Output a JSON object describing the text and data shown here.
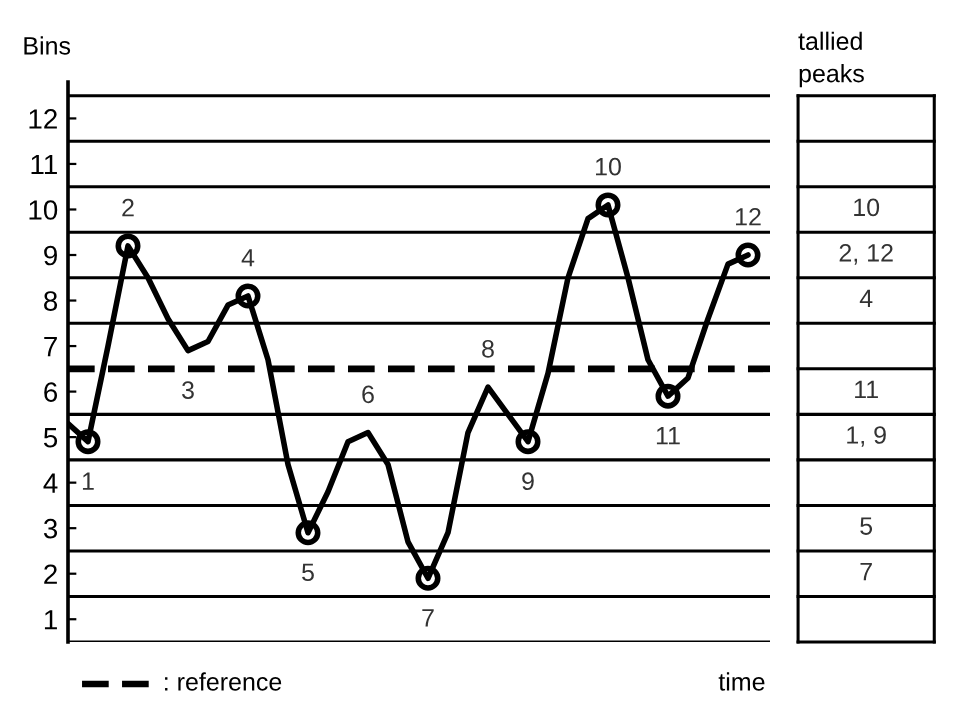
{
  "chart_data": {
    "type": "line",
    "ylabel": "Bins",
    "xlabel": "time",
    "categories": [
      null,
      null,
      null,
      null,
      null,
      null,
      null,
      null,
      null,
      null,
      null,
      null,
      null,
      null,
      null,
      null,
      null,
      null,
      null,
      null,
      null,
      null,
      null,
      null,
      null,
      null,
      null,
      null,
      null,
      null,
      null,
      null,
      null,
      null,
      null
    ],
    "ylim": [
      0.5,
      12.8
    ],
    "yticks": [
      1,
      2,
      3,
      4,
      5,
      6,
      7,
      8,
      9,
      10,
      11,
      12
    ],
    "series": [
      {
        "color": "#000000",
        "marker": "none",
        "values": [
          5.3,
          4.9,
          7.0,
          9.2,
          8.5,
          7.6,
          6.9,
          7.1,
          7.9,
          8.1,
          6.7,
          4.4,
          2.9,
          3.8,
          4.9,
          5.1,
          4.4,
          2.7,
          1.9,
          2.9,
          5.1,
          6.1,
          5.5,
          4.9,
          6.4,
          8.5,
          9.8,
          10.1,
          8.5,
          6.7,
          5.9,
          6.3,
          7.6,
          8.8,
          9.0
        ]
      },
      {
        "type": "scatter",
        "name": "1",
        "color": "#000000",
        "marker": "circle",
        "values": [
          null,
          4.9,
          null,
          null,
          null,
          null,
          null,
          null,
          null,
          null,
          null,
          null,
          null,
          null,
          null,
          null,
          null,
          null,
          null,
          null,
          null,
          null,
          null,
          null,
          null,
          null,
          null,
          null,
          null,
          null,
          null,
          null,
          null,
          null,
          null
        ]
      },
      {
        "type": "scatter",
        "name": "2",
        "color": "#000000",
        "marker": "circle",
        "values": [
          null,
          null,
          null,
          9.2,
          null,
          null,
          null,
          null,
          null,
          null,
          null,
          null,
          null,
          null,
          null,
          null,
          null,
          null,
          null,
          null,
          null,
          null,
          null,
          null,
          null,
          null,
          null,
          null,
          null,
          null,
          null,
          null,
          null,
          null,
          null
        ]
      },
      {
        "type": "scatter",
        "name": "4",
        "color": "#000000",
        "marker": "circle",
        "values": [
          null,
          null,
          null,
          null,
          null,
          null,
          null,
          null,
          null,
          8.1,
          null,
          null,
          null,
          null,
          null,
          null,
          null,
          null,
          null,
          null,
          null,
          null,
          null,
          null,
          null,
          null,
          null,
          null,
          null,
          null,
          null,
          null,
          null,
          null,
          null
        ]
      },
      {
        "type": "scatter",
        "name": "5",
        "color": "#000000",
        "marker": "circle",
        "values": [
          null,
          null,
          null,
          null,
          null,
          null,
          null,
          null,
          null,
          null,
          null,
          null,
          2.9,
          null,
          null,
          null,
          null,
          null,
          null,
          null,
          null,
          null,
          null,
          null,
          null,
          null,
          null,
          null,
          null,
          null,
          null,
          null,
          null,
          null,
          null
        ]
      },
      {
        "type": "scatter",
        "name": "7",
        "color": "#000000",
        "marker": "circle",
        "values": [
          null,
          null,
          null,
          null,
          null,
          null,
          null,
          null,
          null,
          null,
          null,
          null,
          null,
          null,
          null,
          null,
          null,
          null,
          1.9,
          null,
          null,
          null,
          null,
          null,
          null,
          null,
          null,
          null,
          null,
          null,
          null,
          null,
          null,
          null,
          null
        ]
      },
      {
        "type": "scatter",
        "name": "9",
        "color": "#000000",
        "marker": "circle",
        "values": [
          null,
          null,
          null,
          null,
          null,
          null,
          null,
          null,
          null,
          null,
          null,
          null,
          null,
          null,
          null,
          null,
          null,
          null,
          null,
          null,
          null,
          null,
          null,
          4.9,
          null,
          null,
          null,
          null,
          null,
          null,
          null,
          null,
          null,
          null,
          null
        ]
      },
      {
        "type": "scatter",
        "name": "10",
        "color": "#000000",
        "marker": "circle",
        "values": [
          null,
          null,
          null,
          null,
          null,
          null,
          null,
          null,
          null,
          null,
          null,
          null,
          null,
          null,
          null,
          null,
          null,
          null,
          null,
          null,
          null,
          null,
          null,
          null,
          null,
          null,
          null,
          10.1,
          null,
          null,
          null,
          null,
          null,
          null,
          null
        ]
      },
      {
        "type": "scatter",
        "name": "11",
        "color": "#000000",
        "marker": "circle",
        "values": [
          null,
          null,
          null,
          null,
          null,
          null,
          null,
          null,
          null,
          null,
          null,
          null,
          null,
          null,
          null,
          null,
          null,
          null,
          null,
          null,
          null,
          null,
          null,
          null,
          null,
          null,
          null,
          null,
          null,
          null,
          5.9,
          null,
          null,
          null,
          null
        ]
      },
      {
        "type": "scatter",
        "name": "12",
        "color": "#000000",
        "marker": "circle",
        "values": [
          null,
          null,
          null,
          null,
          null,
          null,
          null,
          null,
          null,
          null,
          null,
          null,
          null,
          null,
          null,
          null,
          null,
          null,
          null,
          null,
          null,
          null,
          null,
          null,
          null,
          null,
          null,
          null,
          null,
          null,
          null,
          null,
          null,
          null,
          9.0
        ]
      }
    ],
    "ref_lines": [
      {
        "axis": "y",
        "value": 0.5,
        "color": "#000000",
        "line_style": "solid"
      },
      {
        "axis": "y",
        "value": 1.5,
        "color": "#000000",
        "line_style": "solid"
      },
      {
        "axis": "y",
        "value": 2.5,
        "color": "#000000",
        "line_style": "solid"
      },
      {
        "axis": "y",
        "value": 3.5,
        "color": "#000000",
        "line_style": "solid"
      },
      {
        "axis": "y",
        "value": 4.5,
        "color": "#000000",
        "line_style": "solid"
      },
      {
        "axis": "y",
        "value": 5.5,
        "color": "#000000",
        "line_style": "solid"
      },
      {
        "axis": "y",
        "value": 6.5,
        "color": "#000000",
        "line_style": "dashed",
        "label": ": reference"
      },
      {
        "axis": "y",
        "value": 7.5,
        "color": "#000000",
        "line_style": "solid"
      },
      {
        "axis": "y",
        "value": 8.5,
        "color": "#000000",
        "line_style": "solid"
      },
      {
        "axis": "y",
        "value": 9.5,
        "color": "#000000",
        "line_style": "solid"
      },
      {
        "axis": "y",
        "value": 10.5,
        "color": "#000000",
        "line_style": "solid"
      },
      {
        "axis": "y",
        "value": 11.5,
        "color": "#000000",
        "line_style": "solid"
      },
      {
        "axis": "y",
        "value": 12.5,
        "color": "#000000",
        "line_style": "solid"
      }
    ],
    "y2label": "tallied\npeaks",
    "y2_categories": [
      null,
      null,
      "10",
      "2, 12",
      "4",
      null,
      "11",
      "1, 9",
      null,
      "5",
      "7",
      null
    ],
    "annotations": [
      {
        "text": "3",
        "y": 6.9
      },
      {
        "text": "6",
        "y": 5.1
      },
      {
        "text": "8",
        "y": 6.1
      }
    ]
  }
}
